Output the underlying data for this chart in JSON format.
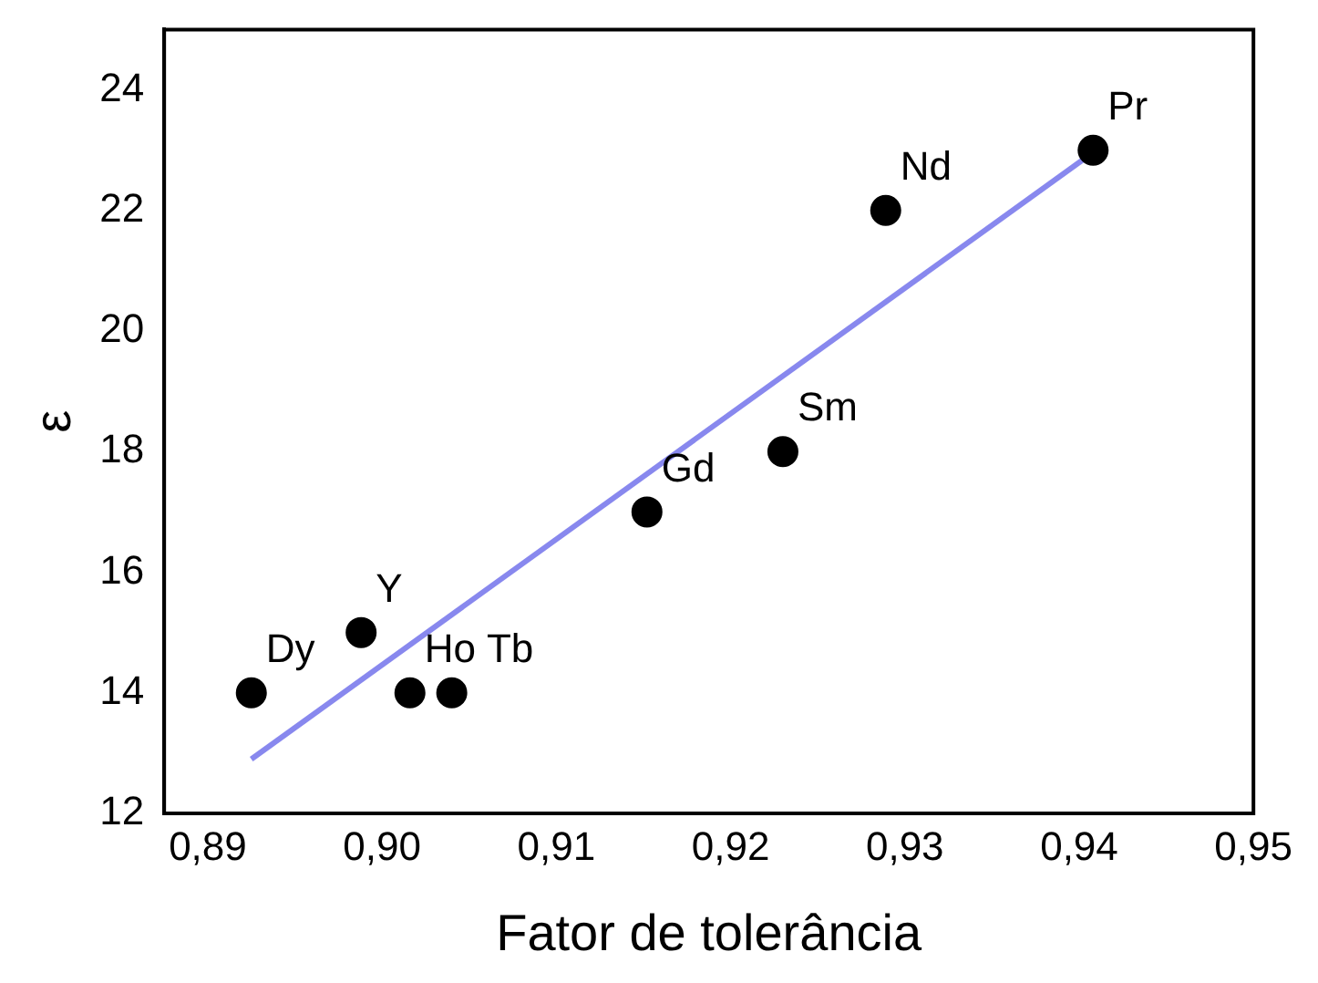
{
  "chart_data": {
    "type": "scatter",
    "xlabel": "Fator de tolerância",
    "ylabel": "ε",
    "xlim": [
      0.8875,
      0.95
    ],
    "xticks": [
      {
        "value": 0.89,
        "label": "0,89"
      },
      {
        "value": 0.9,
        "label": "0,90"
      },
      {
        "value": 0.91,
        "label": "0,91"
      },
      {
        "value": 0.92,
        "label": "0,92"
      },
      {
        "value": 0.93,
        "label": "0,93"
      },
      {
        "value": 0.94,
        "label": "0,94"
      },
      {
        "value": 0.95,
        "label": "0,95"
      }
    ],
    "ylim": [
      12,
      25
    ],
    "yticks": [
      12,
      14,
      16,
      18,
      20,
      22,
      24
    ],
    "grid": false,
    "legend": false,
    "marker": "circle",
    "series": [
      {
        "color": "#000000",
        "x": [
          0.8925,
          0.8988,
          0.9016,
          0.904,
          0.9152,
          0.923,
          0.9289,
          0.9408
        ],
        "values": [
          14,
          15,
          14,
          14,
          17,
          18,
          22,
          23
        ]
      },
      {
        "type": "line",
        "marker": "none",
        "color": "#8888ee",
        "x": [
          0.8925,
          0.9405
        ],
        "values": [
          12.9,
          22.9
        ]
      }
    ],
    "annotations": [
      {
        "text": "Dy",
        "x": 0.8925,
        "y": 14
      },
      {
        "text": "Y",
        "x": 0.8988,
        "y": 15
      },
      {
        "text": "Ho",
        "x": 0.9016,
        "y": 14
      },
      {
        "text": "Tb",
        "x": 0.904,
        "y": 14
      },
      {
        "text": "Gd",
        "x": 0.9152,
        "y": 17
      },
      {
        "text": "Sm",
        "x": 0.923,
        "y": 18
      },
      {
        "text": "Nd",
        "x": 0.9289,
        "y": 22
      },
      {
        "text": "Pr",
        "x": 0.9408,
        "y": 23
      }
    ]
  }
}
